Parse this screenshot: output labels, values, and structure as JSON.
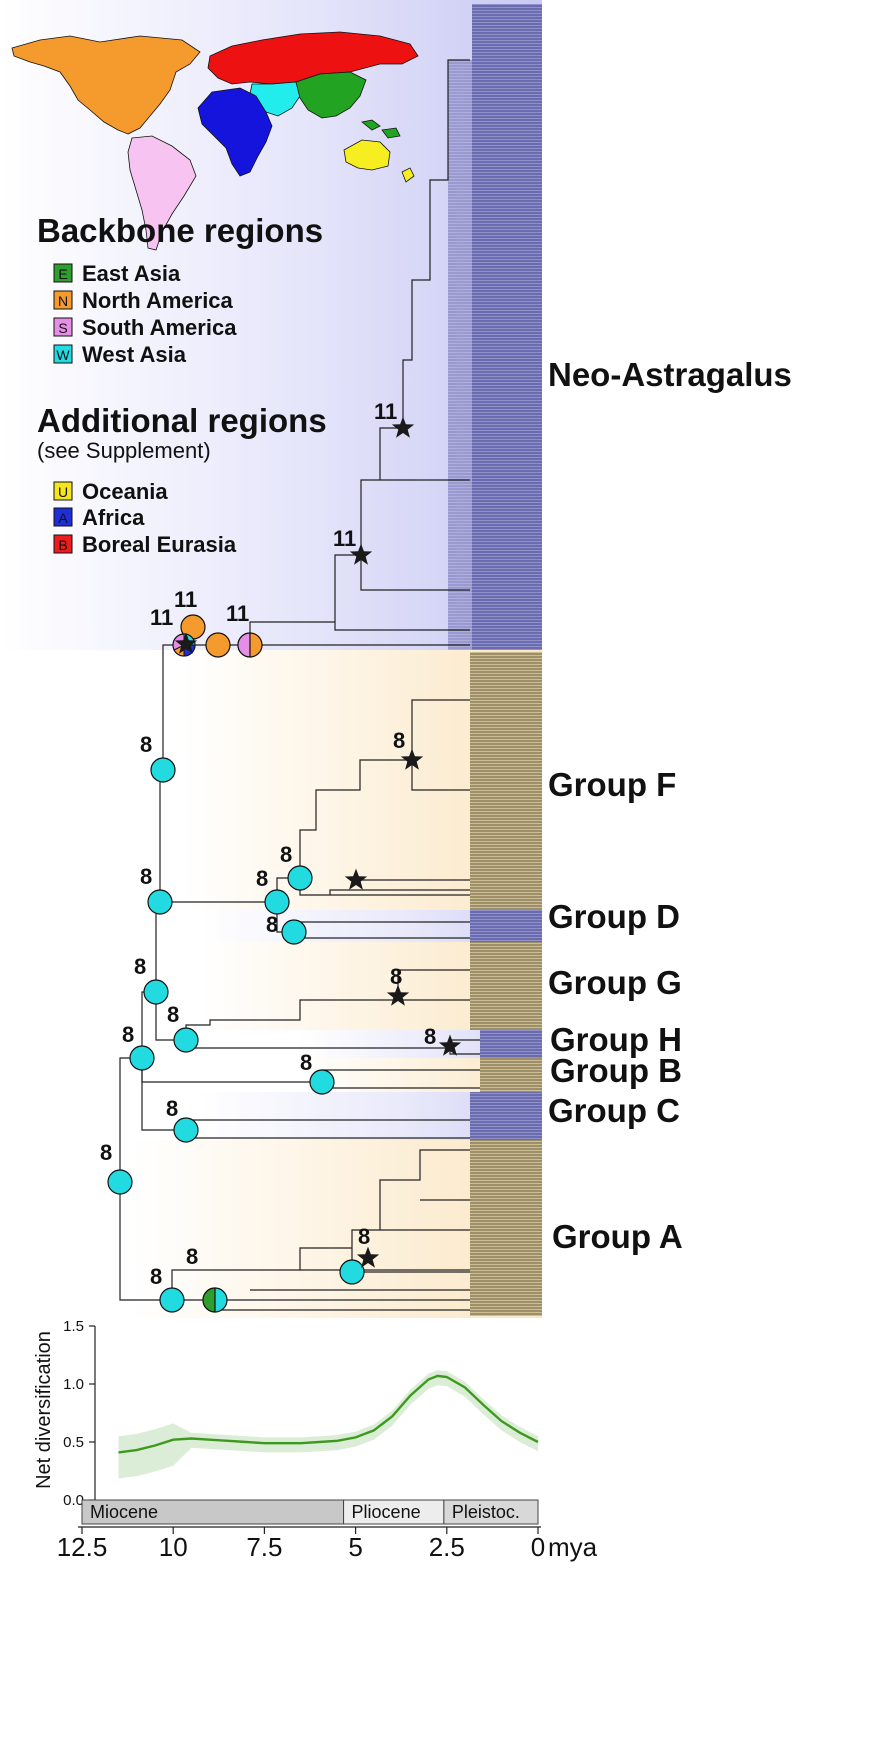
{
  "legend": {
    "backbone_title": "Backbone regions",
    "backbone_items": [
      {
        "code": "E",
        "label": "East Asia",
        "color": "#2e9e2e"
      },
      {
        "code": "N",
        "label": "North America",
        "color": "#f59a2d"
      },
      {
        "code": "S",
        "label": "South America",
        "color": "#e58ee5"
      },
      {
        "code": "W",
        "label": "West Asia",
        "color": "#22dbe0"
      }
    ],
    "additional_title": "Additional regions",
    "additional_subtitle": "(see Supplement)",
    "additional_items": [
      {
        "code": "U",
        "label": "Oceania",
        "color": "#f5e51e"
      },
      {
        "code": "A",
        "label": "Africa",
        "color": "#1f2fd8"
      },
      {
        "code": "B",
        "label": "Boreal Eurasia",
        "color": "#ee1c1c"
      }
    ]
  },
  "map_colors": {
    "north_america": "#f59a2d",
    "south_america": "#f7c4f2",
    "africa": "#1414dc",
    "boreal_eurasia": "#ee1111",
    "west_asia": "#22ecec",
    "east_asia": "#22a322",
    "oceania": "#f7ee22"
  },
  "groups": [
    {
      "name": "Neo-Astragalus"
    },
    {
      "name": "Group F"
    },
    {
      "name": "Group D"
    },
    {
      "name": "Group G"
    },
    {
      "name": "Group H"
    },
    {
      "name": "Group B"
    },
    {
      "name": "Group C"
    },
    {
      "name": "Group A"
    }
  ],
  "node_labels": {
    "n11a": "11",
    "n11b": "11",
    "n11c": "11",
    "n11d": "11",
    "n11e": "11",
    "n8a": "8",
    "n8b": "8",
    "n8c": "8",
    "n8d": "8",
    "n8e": "8",
    "n8f": "8",
    "n8g": "8",
    "n8h": "8",
    "n8i": "8",
    "n8j": "8",
    "n8k": "8",
    "n8l": "8",
    "n8m": "8",
    "n8n": "8",
    "n8o": "8"
  },
  "chart_data": {
    "type": "line",
    "title": "",
    "xlabel": "mya",
    "ylabel": "Net diversification",
    "xlim": [
      12.5,
      0
    ],
    "ylim": [
      0,
      1.5
    ],
    "x_ticks": [
      "12.5",
      "10",
      "7.5",
      "5",
      "2.5",
      "0"
    ],
    "y_ticks": [
      "0.0",
      "0.5",
      "1.0",
      "1.5"
    ],
    "series": [
      {
        "color": "#3d9a1f",
        "x": [
          11.5,
          11.0,
          10.5,
          10.0,
          9.5,
          9.0,
          8.5,
          8.0,
          7.5,
          7.0,
          6.5,
          6.0,
          5.5,
          5.0,
          4.5,
          4.0,
          3.5,
          3.0,
          2.75,
          2.5,
          2.0,
          1.5,
          1.0,
          0.5,
          0.0
        ],
        "y": [
          0.41,
          0.43,
          0.47,
          0.52,
          0.53,
          0.52,
          0.51,
          0.5,
          0.49,
          0.49,
          0.49,
          0.5,
          0.51,
          0.54,
          0.6,
          0.72,
          0.9,
          1.04,
          1.07,
          1.06,
          0.97,
          0.82,
          0.68,
          0.58,
          0.5
        ]
      }
    ],
    "epochs": [
      {
        "name": "Miocene",
        "from": 12.5,
        "to": 5.33
      },
      {
        "name": "Pliocene",
        "from": 5.33,
        "to": 2.58
      },
      {
        "name": "Pleistoc.",
        "from": 2.58,
        "to": 0
      }
    ]
  }
}
